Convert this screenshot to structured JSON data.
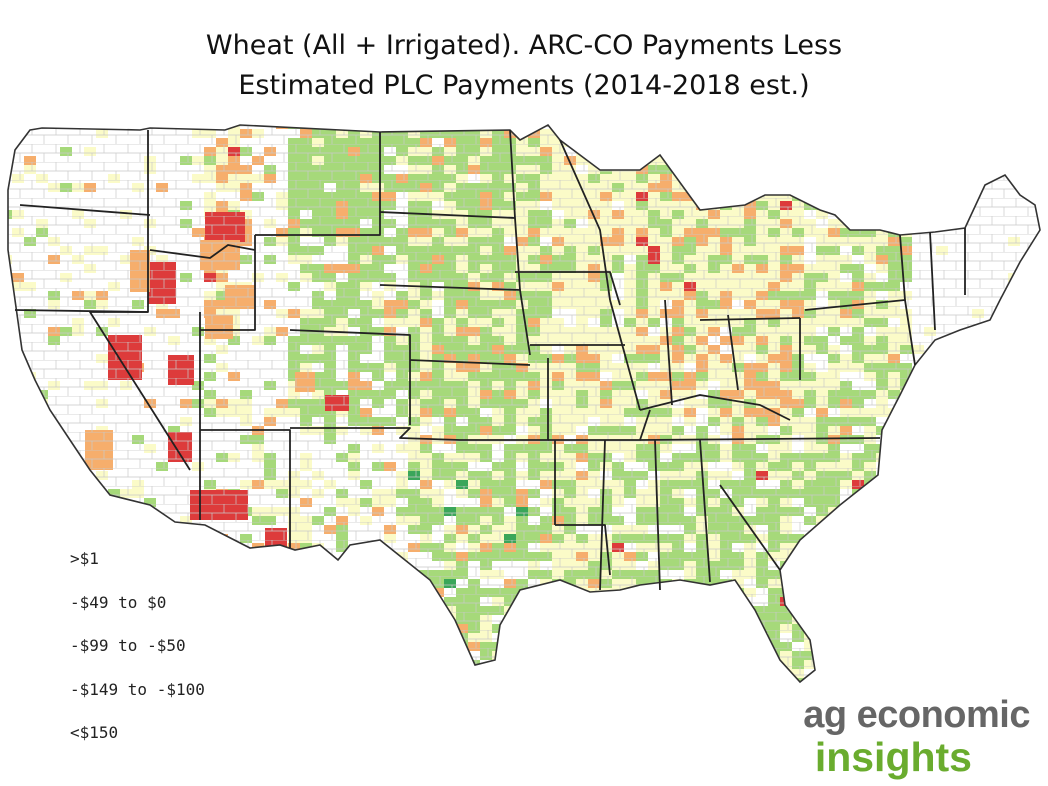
{
  "title": {
    "line1": "Wheat (All + Irrigated). ARC-CO Payments Less",
    "line2": "Estimated PLC Payments (2014-2018 est.)"
  },
  "legend": {
    "items": [
      {
        "label": ">$1",
        "color": "#3aa65a"
      },
      {
        "label": "-$49 to $0",
        "color": "#a6d97a"
      },
      {
        "label": "-$99 to -$50",
        "color": "#fbfbc8"
      },
      {
        "label": "-$149 to -$100",
        "color": "#f6ae6c"
      },
      {
        "label": "<$150",
        "color": "#dd3b3b"
      }
    ]
  },
  "branding": {
    "line1": "ag economic",
    "line2": "insights",
    "colors": {
      "line1": "#666666",
      "line2": "#6aac2e"
    }
  },
  "map": {
    "region": "Contiguous United States, county level",
    "colors": {
      "no_data": "#ffffff",
      "county_border": "#b9b9b9",
      "state_border": "#222222"
    }
  }
}
